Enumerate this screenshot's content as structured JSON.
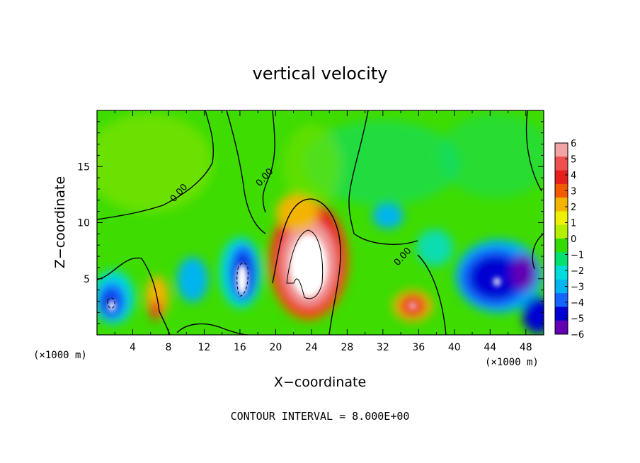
{
  "chart_data": {
    "type": "heatmap",
    "title": "vertical velocity",
    "xlabel": "X−coordinate",
    "ylabel": "Z−coordinate",
    "x_unit_left": "(×1000 m)",
    "x_unit_right": "(×1000 m)",
    "xlim": [
      0,
      50
    ],
    "ylim": [
      0,
      20
    ],
    "x_ticks": [
      "4",
      "8",
      "12",
      "16",
      "20",
      "24",
      "28",
      "32",
      "36",
      "40",
      "44",
      "48"
    ],
    "y_ticks": [
      "5",
      "10",
      "15"
    ],
    "contour_labels": [
      "0.00",
      "0.00",
      "0.00"
    ],
    "footer": "CONTOUR INTERVAL = 8.000E+00",
    "colorbar": {
      "labels": [
        "6",
        "5",
        "4",
        "3",
        "2",
        "1",
        "0",
        "−1",
        "−2",
        "−3",
        "−4",
        "−5",
        "−6"
      ],
      "colors": [
        "#f2a3a3",
        "#ee5050",
        "#e61e1e",
        "#f25a00",
        "#f2b400",
        "#eef000",
        "#b4ee00",
        "#32dc00",
        "#00e070",
        "#00dcdc",
        "#00b4f0",
        "#1464ff",
        "#0000d2",
        "#6400b4"
      ]
    },
    "features": [
      {
        "name": "updraft-core",
        "x": 23.5,
        "z": 6.5,
        "sign": "positive"
      },
      {
        "name": "downdraft-left",
        "x": 2,
        "z": 3,
        "sign": "negative"
      },
      {
        "name": "downdraft-center",
        "x": 16.5,
        "z": 5.5,
        "sign": "negative"
      },
      {
        "name": "updraft-small",
        "x": 35,
        "z": 2.5,
        "sign": "positive"
      },
      {
        "name": "downdraft-right",
        "x": 45,
        "z": 5,
        "sign": "negative"
      }
    ]
  }
}
